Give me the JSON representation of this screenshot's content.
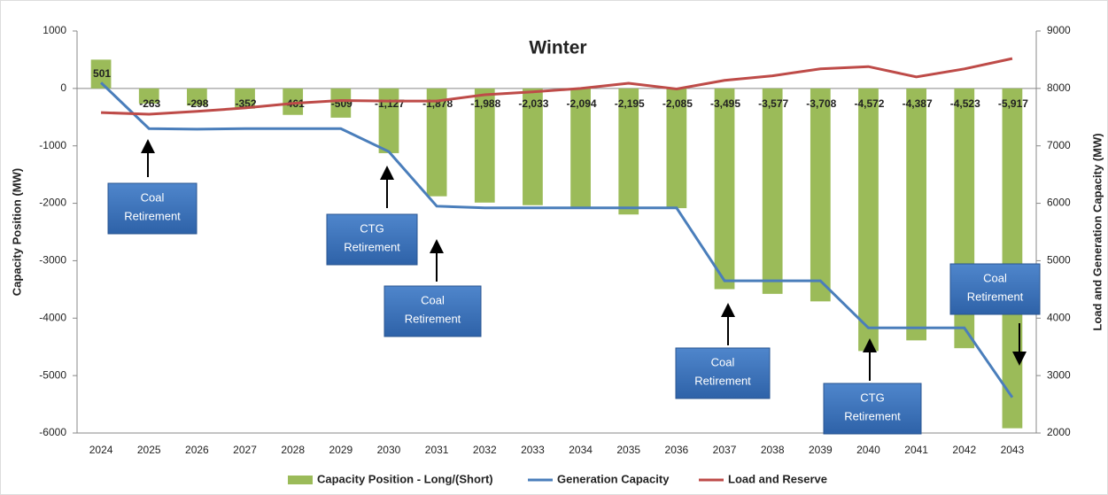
{
  "chart_data": {
    "type": "bar",
    "title": "Winter",
    "y_label": "Capacity Position (MW)",
    "y2_label": "Load and Generation Capacity (MW)",
    "categories": [
      "2024",
      "2025",
      "2026",
      "2027",
      "2028",
      "2029",
      "2030",
      "2031",
      "2032",
      "2033",
      "2034",
      "2035",
      "2036",
      "2037",
      "2038",
      "2039",
      "2040",
      "2041",
      "2042",
      "2043"
    ],
    "ylim": [
      -6000,
      1000
    ],
    "yticks": [
      -6000,
      -5000,
      -4000,
      -3000,
      -2000,
      -1000,
      0,
      1000
    ],
    "y2lim": [
      2000,
      9000
    ],
    "y2ticks": [
      2000,
      3000,
      4000,
      5000,
      6000,
      7000,
      8000,
      9000
    ],
    "grid": false,
    "legend": "bottom",
    "series": [
      {
        "name": "Capacity Position - Long/(Short)",
        "type": "bar",
        "color": "#9bbb59",
        "values": [
          501,
          -263,
          -298,
          -352,
          -461,
          -509,
          -1127,
          -1878,
          -1988,
          -2033,
          -2094,
          -2195,
          -2085,
          -3495,
          -3577,
          -3708,
          -4572,
          -4387,
          -4523,
          -5917
        ],
        "value_labels": [
          "501",
          "-263",
          "-298",
          "-352",
          "-461",
          "-509",
          "-1,127",
          "-1,878",
          "-1,988",
          "-2,033",
          "-2,094",
          "-2,195",
          "-2,085",
          "-3,495",
          "-3,577",
          "-3,708",
          "-4,572",
          "-4,387",
          "-4,523",
          "-5,917"
        ]
      },
      {
        "name": "Generation Capacity",
        "type": "line",
        "axis": "y2",
        "color": "#4a7ebb",
        "values": [
          8100,
          7300,
          7290,
          7300,
          7300,
          7300,
          6900,
          5950,
          5920,
          5920,
          5920,
          5920,
          5920,
          4650,
          4650,
          4650,
          3830,
          3830,
          3830,
          2620
        ]
      },
      {
        "name": "Load and Reserve",
        "type": "line",
        "axis": "y2",
        "color": "#be4b48",
        "values": [
          7580,
          7550,
          7600,
          7660,
          7740,
          7790,
          7780,
          7780,
          7890,
          7940,
          8000,
          8090,
          7990,
          8140,
          8220,
          8340,
          8380,
          8200,
          8340,
          8520
        ]
      }
    ],
    "annotations": [
      {
        "lines": [
          "Coal",
          "Retirement"
        ]
      },
      {
        "lines": [
          "CTG",
          "Retirement"
        ]
      },
      {
        "lines": [
          "Coal",
          "Retirement"
        ]
      },
      {
        "lines": [
          "Coal",
          "Retirement"
        ]
      },
      {
        "lines": [
          "CTG",
          "Retirement"
        ]
      },
      {
        "lines": [
          "Coal",
          "Retirement"
        ]
      }
    ]
  }
}
